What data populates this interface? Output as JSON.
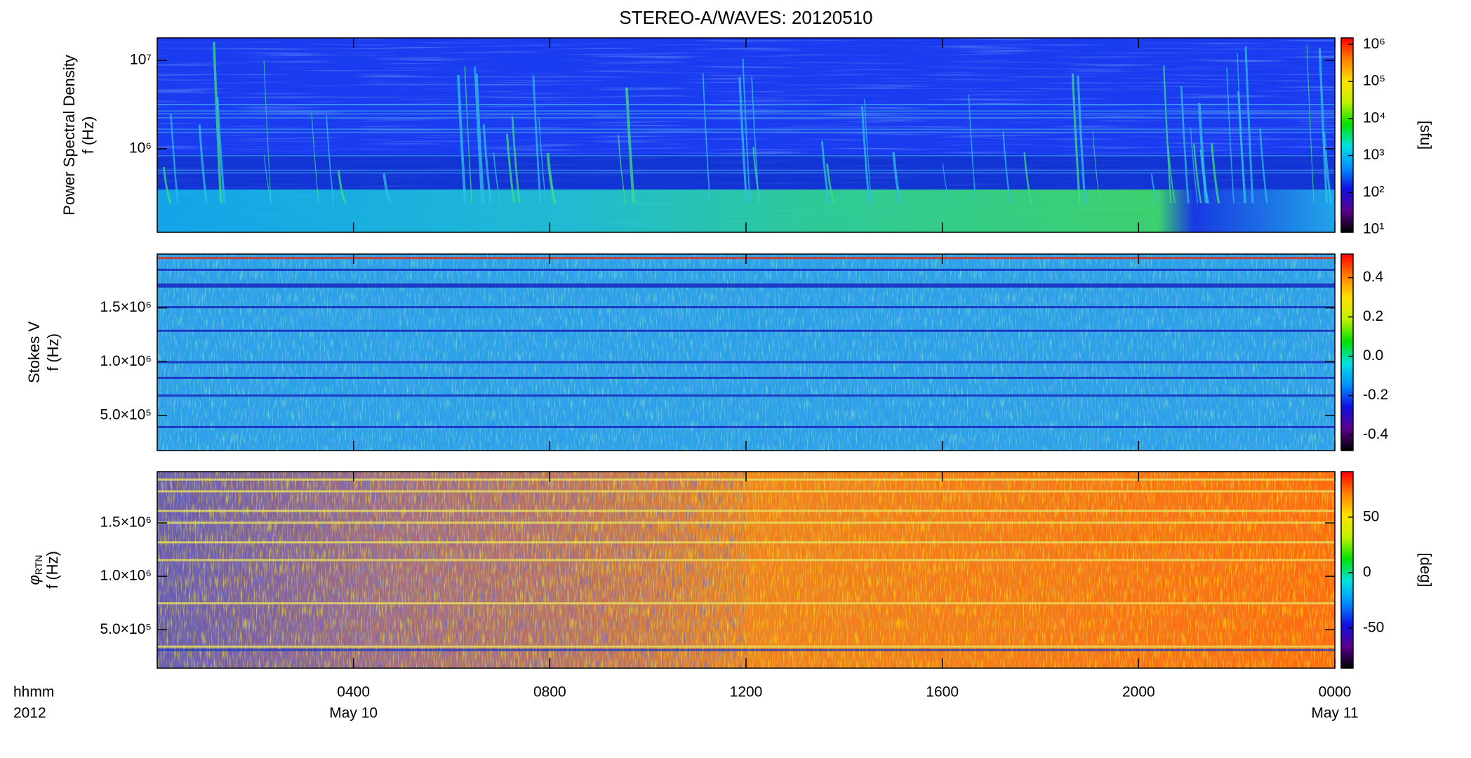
{
  "chart_data": [
    {
      "type": "spectrogram",
      "title": "STEREO-A/WAVES: 20120510",
      "ylabel": [
        "Power Spectral Density",
        "f (Hz)"
      ],
      "yscale": "log",
      "ylim": [
        113000,
        18000000
      ],
      "yticks": [
        {
          "value": 1000000,
          "label": "10⁶"
        },
        {
          "value": 10000000,
          "label": "10⁷"
        }
      ],
      "colorbar": {
        "label": "[sfu]",
        "scale": "log",
        "lim": [
          8.4,
          1500000
        ],
        "ticks": [
          {
            "value": 10,
            "label": "10¹"
          },
          {
            "value": 100,
            "label": "10²"
          },
          {
            "value": 1000,
            "label": "10³"
          },
          {
            "value": 10000,
            "label": "10⁴"
          },
          {
            "value": 100000,
            "label": "10⁵"
          },
          {
            "value": 1000000,
            "label": "10⁶"
          }
        ]
      },
      "colormap": [
        "#000000",
        "#5a008c",
        "#1010e0",
        "#0090ff",
        "#00e0e0",
        "#00e000",
        "#c0f000",
        "#ffe000",
        "#ff8000",
        "#ff0000"
      ]
    },
    {
      "type": "spectrogram",
      "ylabel": [
        "Stokes V",
        "f (Hz)"
      ],
      "yscale": "linear",
      "ylim": [
        173000,
        2000000
      ],
      "yticks": [
        {
          "value": 500000,
          "label": "5.0×10⁵"
        },
        {
          "value": 1000000,
          "label": "1.0×10⁶"
        },
        {
          "value": 1500000,
          "label": "1.5×10⁶"
        }
      ],
      "colorbar": {
        "scale": "linear",
        "lim": [
          -0.48,
          0.52
        ],
        "ticks": [
          -0.4,
          -0.2,
          {
            "value": 0,
            "label": "0.0"
          },
          0.2,
          0.4
        ]
      },
      "colormap": [
        "#000000",
        "#5a008c",
        "#1010e0",
        "#0090ff",
        "#00e0e0",
        "#00e000",
        "#c0f000",
        "#ffe000",
        "#ff8000",
        "#ff0000"
      ]
    },
    {
      "type": "spectrogram",
      "ylabel_symbol": "φ",
      "ylabel_subscript": "RTN",
      "ylabel": [
        "f (Hz)"
      ],
      "yscale": "linear",
      "ylim": [
        140000,
        1980000
      ],
      "yticks": [
        {
          "value": 500000,
          "label": "5.0×10⁵"
        },
        {
          "value": 1000000,
          "label": "1.0×10⁶"
        },
        {
          "value": 1500000,
          "label": "1.5×10⁶"
        }
      ],
      "colorbar": {
        "label": "[deg]",
        "scale": "linear",
        "lim": [
          -86,
          91
        ],
        "ticks": [
          -50,
          0,
          50
        ]
      },
      "colormap": [
        "#000000",
        "#5a008c",
        "#1010e0",
        "#0090ff",
        "#00e0e0",
        "#00e000",
        "#c0f000",
        "#ffe000",
        "#ff8000",
        "#ff0000"
      ],
      "xlim": [
        0,
        24
      ],
      "xticks": [
        {
          "value": 4,
          "label": "0400"
        },
        {
          "value": 8,
          "label": "0800"
        },
        {
          "value": 12,
          "label": "1200"
        },
        {
          "value": 16,
          "label": "1600"
        },
        {
          "value": 20,
          "label": "2000"
        },
        {
          "value": 24,
          "label": "0000"
        }
      ],
      "x_date_labels": [
        {
          "value": 4,
          "label": "May 10"
        },
        {
          "value": 24,
          "label": "May 11"
        }
      ],
      "x_axis_header": [
        "hhmm",
        "2012"
      ]
    }
  ]
}
